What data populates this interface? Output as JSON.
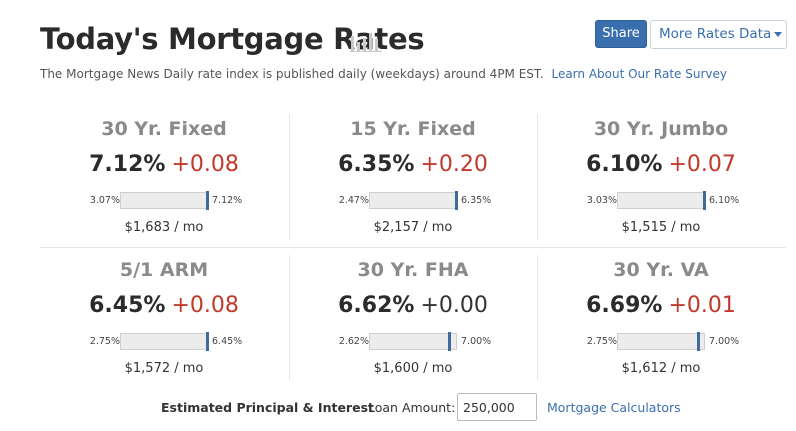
{
  "header": {
    "title": "Today's Mortgage Rates",
    "share_label": "Share",
    "more_label": "More Rates Data",
    "subtitle": "The Mortgage News Daily rate index is published daily (weekdays) around 4PM EST.",
    "survey_link": "Learn About Our Rate Survey"
  },
  "rates": [
    {
      "name": "30 Yr. Fixed",
      "rate": "7.12%",
      "change": "+0.08",
      "low": "3.07%",
      "high": "7.12%",
      "marker_position": 1.0,
      "payment": "$1,683 / mo"
    },
    {
      "name": "15 Yr. Fixed",
      "rate": "6.35%",
      "change": "+0.20",
      "low": "2.47%",
      "high": "6.35%",
      "marker_position": 1.0,
      "payment": "$2,157 / mo"
    },
    {
      "name": "30 Yr. Jumbo",
      "rate": "6.10%",
      "change": "+0.07",
      "low": "3.03%",
      "high": "6.10%",
      "marker_position": 1.0,
      "payment": "$1,515 / mo"
    },
    {
      "name": "5/1 ARM",
      "rate": "6.45%",
      "change": "+0.08",
      "low": "2.75%",
      "high": "6.45%",
      "marker_position": 1.0,
      "payment": "$1,572 / mo"
    },
    {
      "name": "30 Yr. FHA",
      "rate": "6.62%",
      "change": "+0.00",
      "low": "2.62%",
      "high": "7.00%",
      "marker_position": 0.915,
      "payment": "$1,600 / mo"
    },
    {
      "name": "30 Yr. VA",
      "rate": "6.69%",
      "change": "+0.01",
      "low": "2.75%",
      "high": "7.00%",
      "marker_position": 0.927,
      "payment": "$1,612 / mo"
    }
  ],
  "footer": {
    "estimate_label": "Estimated Principal & Interest",
    "loan_label": "Loan Amount:",
    "loan_value": "250,000",
    "calculators_link": "Mortgage Calculators"
  },
  "colors": {
    "accent": "#3a6fad",
    "increase": "#c0392b",
    "marker": "#3f6a9c"
  }
}
